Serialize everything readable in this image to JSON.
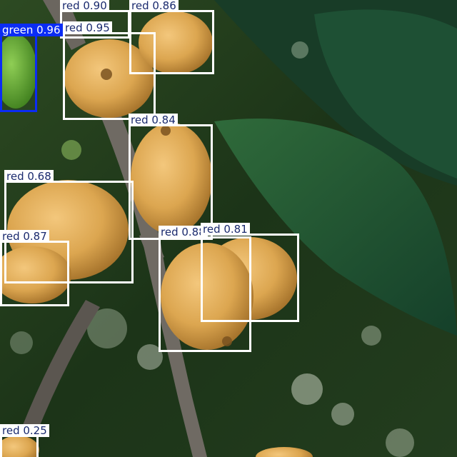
{
  "colors": {
    "red_box": "#ffffff",
    "red_text": "#1a2a6e",
    "green_box": "#0b2cf5",
    "green_text": "#ffffff"
  },
  "detections": [
    {
      "label": "red 0.90",
      "cls": "red"
    },
    {
      "label": "red 0.86",
      "cls": "red"
    },
    {
      "label": "green 0.96",
      "cls": "green"
    },
    {
      "label": "red 0.95",
      "cls": "red"
    },
    {
      "label": "red 0.84",
      "cls": "red"
    },
    {
      "label": "red 0.68",
      "cls": "red"
    },
    {
      "label": "red 0.87",
      "cls": "red"
    },
    {
      "label": "red 0.88",
      "cls": "red"
    },
    {
      "label": "red 0.81",
      "cls": "red"
    },
    {
      "label": "red 0.25",
      "cls": "red"
    }
  ]
}
